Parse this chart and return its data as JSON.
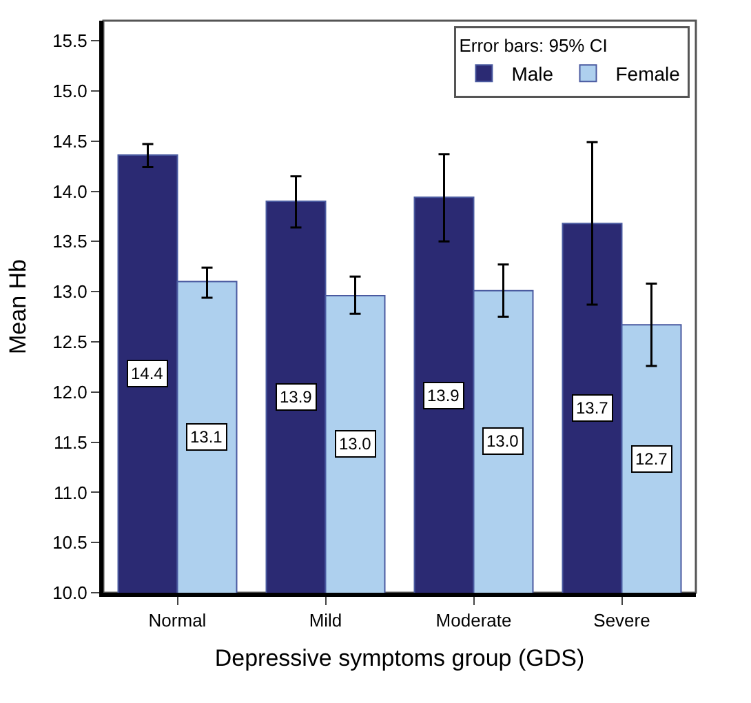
{
  "chart_data": {
    "type": "bar",
    "xlabel": "Depressive symptoms group (GDS)",
    "ylabel": "Mean Hb",
    "legend_title": "Error bars: 95% CI",
    "categories": [
      "Normal",
      "Mild",
      "Moderate",
      "Severe"
    ],
    "series": [
      {
        "name": "Male",
        "color": "#2b2a73",
        "values": [
          14.36,
          13.9,
          13.94,
          13.68
        ],
        "errors": [
          [
            14.24,
            14.47
          ],
          [
            13.64,
            14.15
          ],
          [
            13.5,
            14.37
          ],
          [
            12.87,
            14.49
          ]
        ],
        "value_labels": [
          "14.4",
          "13.9",
          "13.9",
          "13.7"
        ]
      },
      {
        "name": "Female",
        "color": "#aed0ee",
        "values": [
          13.1,
          12.96,
          13.01,
          12.67
        ],
        "errors": [
          [
            12.94,
            13.24
          ],
          [
            12.78,
            13.15
          ],
          [
            12.75,
            13.27
          ],
          [
            12.26,
            13.08
          ]
        ],
        "value_labels": [
          "13.1",
          "13.0",
          "13.0",
          "12.7"
        ]
      }
    ],
    "ylim": [
      10.0,
      15.7
    ],
    "yticks": [
      {
        "value": 10,
        "label": "10.0"
      },
      10.5,
      {
        "value": 11,
        "label": "11.0"
      },
      11.5,
      {
        "value": 12,
        "label": "12.0"
      },
      12.5,
      {
        "value": 13,
        "label": "13.0"
      },
      13.5,
      {
        "value": 14,
        "label": "14.0"
      },
      14.5,
      {
        "value": 15,
        "label": "15.0"
      },
      15.5
    ],
    "grid": false,
    "legend": "top right"
  }
}
